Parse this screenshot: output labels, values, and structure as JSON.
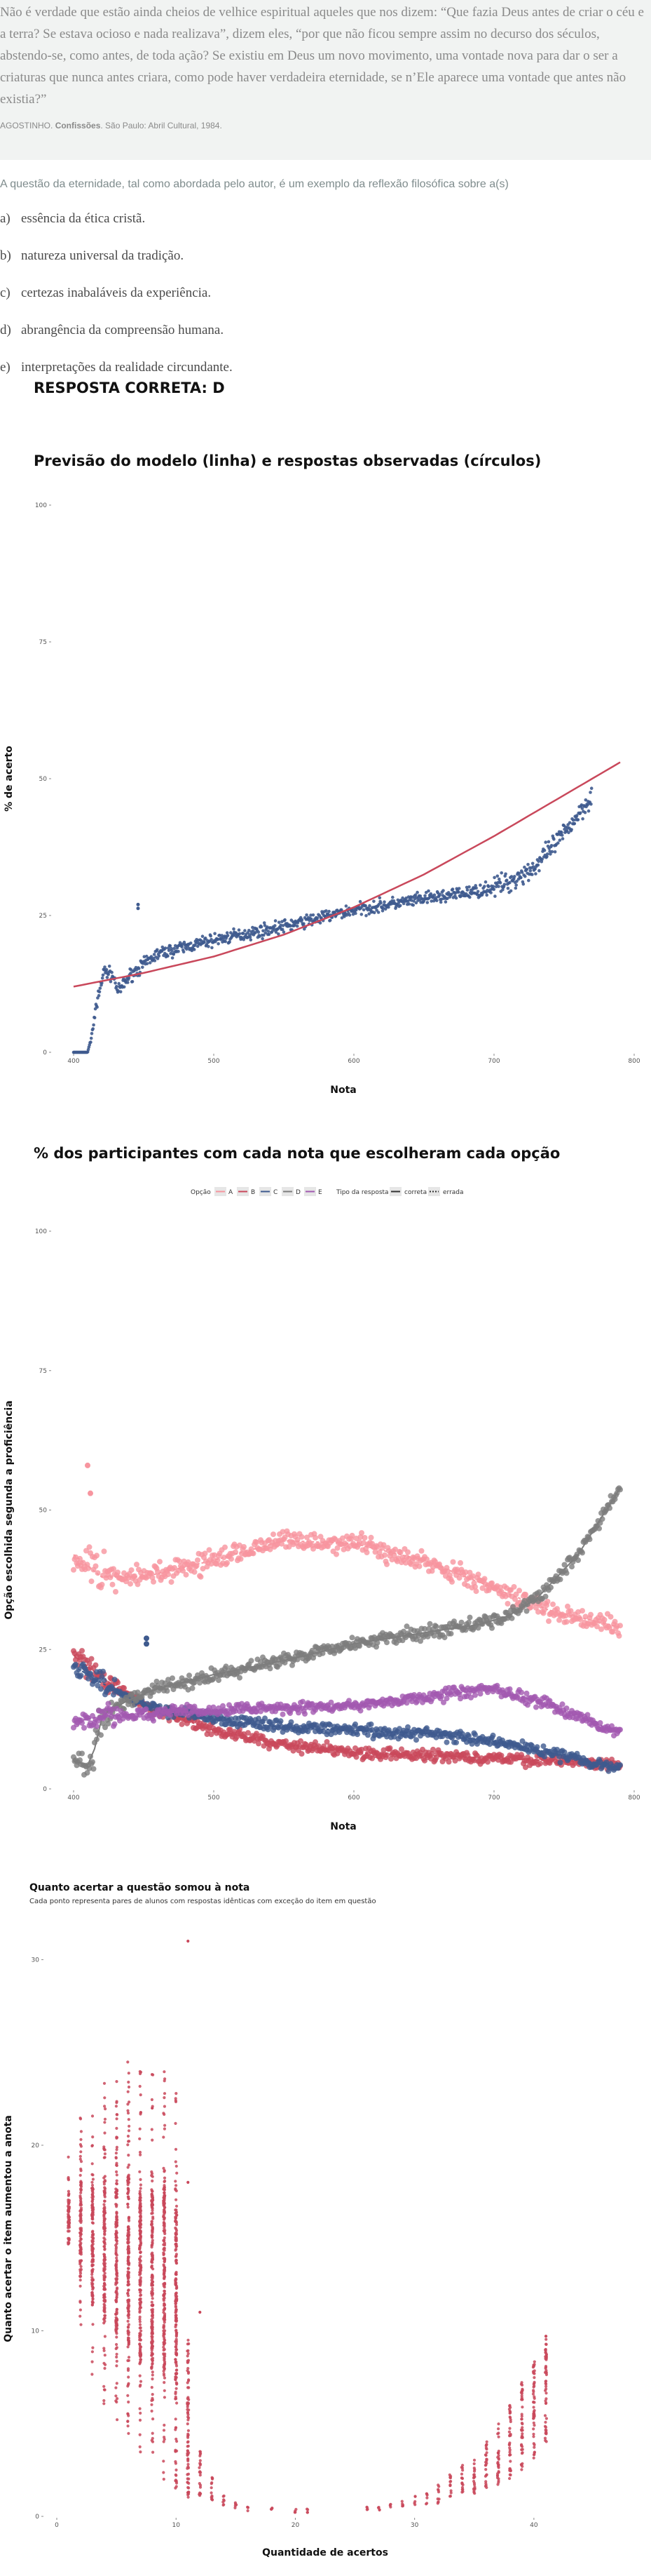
{
  "excerpt": {
    "quote": "Não é verdade que estão ainda cheios de velhice espiritual aqueles que nos dizem: “Que fazia Deus antes de criar o céu e a terra? Se estava ocioso e nada realizava”, dizem eles, “por que não ficou sempre assim no decurso dos séculos, abstendo-se, como antes, de toda ação? Se existiu em Deus um novo movimento, uma vontade nova para dar o ser a criaturas que nunca antes criara, como pode haver verdadeira eternidade, se n’Ele aparece uma vontade que antes não existia?”",
    "source_author": "AGOSTINHO.",
    "source_title": "Confissões",
    "source_rest": ". São Paulo: Abril Cultural, 1984."
  },
  "question": "A questão da eternidade, tal como abordada pelo autor, é um exemplo da reflexão filosófica sobre a(s)",
  "options": [
    {
      "letter": "a)",
      "text": "essência da ética cristã."
    },
    {
      "letter": "b)",
      "text": "natureza universal da tradição."
    },
    {
      "letter": "c)",
      "text": "certezas inabaláveis da experiência."
    },
    {
      "letter": "d)",
      "text": "abrangência da compreensão humana."
    },
    {
      "letter": "e)",
      "text": "interpretações da realidade circundante."
    }
  ],
  "answer": "RESPOSTA CORRETA: D",
  "chart_data": [
    {
      "type": "scatter",
      "title": "Previsão do modelo (linha) e respostas observadas (círculos)",
      "xlabel": "Nota",
      "ylabel": "% de acerto",
      "xticks": [
        400,
        500,
        600,
        700,
        800
      ],
      "yticks": [
        0,
        25,
        50,
        75,
        100
      ],
      "xlim": [
        385,
        800
      ],
      "ylim": [
        0,
        100
      ],
      "grid": false,
      "point_color": "#3e5a8e",
      "line_color": "#c9485b",
      "model_line": [
        [
          400,
          12
        ],
        [
          450,
          14.5
        ],
        [
          500,
          17.5
        ],
        [
          550,
          21.5
        ],
        [
          600,
          26.5
        ],
        [
          650,
          32.5
        ],
        [
          700,
          39.5
        ],
        [
          750,
          47
        ],
        [
          790,
          53
        ]
      ],
      "observed_trend": [
        [
          400,
          0
        ],
        [
          410,
          0
        ],
        [
          413,
          3
        ],
        [
          418,
          11
        ],
        [
          422,
          15
        ],
        [
          428,
          14
        ],
        [
          432,
          11
        ],
        [
          440,
          14
        ],
        [
          460,
          18
        ],
        [
          500,
          20.5
        ],
        [
          550,
          23
        ],
        [
          600,
          26
        ],
        [
          650,
          28
        ],
        [
          690,
          29.5
        ],
        [
          710,
          31
        ],
        [
          730,
          34
        ],
        [
          750,
          40
        ],
        [
          770,
          47
        ]
      ],
      "outliers": [
        [
          446,
          27
        ],
        [
          446,
          26.3
        ]
      ]
    },
    {
      "type": "scatter",
      "title": "% dos participantes com cada nota que escolheram cada opção",
      "xlabel": "Nota",
      "ylabel": "Opção escolhida segunda a proficiência",
      "xticks": [
        400,
        500,
        600,
        700,
        800
      ],
      "yticks": [
        0,
        25,
        50,
        75,
        100
      ],
      "xlim": [
        385,
        800
      ],
      "ylim": [
        0,
        100
      ],
      "grid": false,
      "legend": {
        "position": "top",
        "option_title": "Opção",
        "type_title": "Tipo da resposta",
        "types": [
          "correta",
          "errada"
        ]
      },
      "series": [
        {
          "name": "A",
          "color": "#f7959f",
          "trend": [
            [
              400,
              42
            ],
            [
              420,
              38
            ],
            [
              450,
              38
            ],
            [
              500,
              41
            ],
            [
              550,
              44.5
            ],
            [
              600,
              44
            ],
            [
              650,
              41
            ],
            [
              700,
              36
            ],
            [
              740,
              32
            ],
            [
              790,
              29
            ]
          ]
        },
        {
          "name": "B",
          "color": "#c9485b",
          "trend": [
            [
              400,
              24
            ],
            [
              420,
              20
            ],
            [
              450,
              15
            ],
            [
              500,
              10.5
            ],
            [
              550,
              8
            ],
            [
              600,
              6.5
            ],
            [
              650,
              6
            ],
            [
              700,
              5.5
            ],
            [
              750,
              5
            ],
            [
              790,
              4.5
            ]
          ]
        },
        {
          "name": "C",
          "color": "#3e5a8e",
          "trend": [
            [
              400,
              22
            ],
            [
              420,
              19
            ],
            [
              450,
              15
            ],
            [
              500,
              12.5
            ],
            [
              550,
              11
            ],
            [
              600,
              10.5
            ],
            [
              650,
              10
            ],
            [
              700,
              8.5
            ],
            [
              750,
              6
            ],
            [
              790,
              3.5
            ]
          ]
        },
        {
          "name": "D",
          "color": "#7d7d7d",
          "trend": [
            [
              400,
              5
            ],
            [
              413,
              4
            ],
            [
              418,
              12
            ],
            [
              425,
              14
            ],
            [
              440,
              16
            ],
            [
              460,
              18
            ],
            [
              500,
              20.5
            ],
            [
              550,
              23
            ],
            [
              600,
              26
            ],
            [
              650,
              28
            ],
            [
              690,
              29.5
            ],
            [
              710,
              31
            ],
            [
              730,
              34
            ],
            [
              760,
              42
            ],
            [
              790,
              54
            ]
          ]
        },
        {
          "name": "E",
          "color": "#a259b0",
          "trend": [
            [
              400,
              12
            ],
            [
              420,
              13
            ],
            [
              450,
              13.5
            ],
            [
              500,
              14
            ],
            [
              550,
              14.5
            ],
            [
              600,
              15
            ],
            [
              650,
              16.5
            ],
            [
              700,
              18
            ],
            [
              740,
              15
            ],
            [
              790,
              10
            ]
          ]
        }
      ],
      "series_outliers": [
        {
          "series": "A",
          "points": [
            [
              410,
              58
            ],
            [
              412,
              53
            ]
          ]
        },
        {
          "series": "C",
          "points": [
            [
              452,
              27
            ],
            [
              452,
              26
            ]
          ]
        }
      ]
    },
    {
      "type": "scatter",
      "title": "Quanto acertar a questão somou à nota",
      "subtitle": "Cada ponto representa pares de alunos com respostas idênticas com exceção do item em questão",
      "xlabel": "Quantidade de acertos",
      "ylabel": "Quanto acertar o item aumentou a anota",
      "xticks": [
        0,
        10,
        20,
        30,
        40
      ],
      "yticks": [
        0,
        10,
        20,
        30
      ],
      "xlim": [
        -1,
        46
      ],
      "ylim": [
        0,
        31
      ],
      "grid": false,
      "point_color": "#c9485b",
      "column_ranges": [
        {
          "x": 1,
          "min": 13,
          "max": 19.5
        },
        {
          "x": 2,
          "min": 10,
          "max": 21.5
        },
        {
          "x": 3,
          "min": 7.5,
          "max": 22.5
        },
        {
          "x": 4,
          "min": 6,
          "max": 23.5
        },
        {
          "x": 5,
          "min": 5,
          "max": 23.5
        },
        {
          "x": 6,
          "min": 4,
          "max": 24.5
        },
        {
          "x": 7,
          "min": 3,
          "max": 24
        },
        {
          "x": 8,
          "min": 2.5,
          "max": 24
        },
        {
          "x": 9,
          "min": 2,
          "max": 24.5
        },
        {
          "x": 10,
          "min": 1.5,
          "max": 23
        },
        {
          "x": 11,
          "min": 1,
          "max": 9.5
        },
        {
          "x": 12,
          "min": 1,
          "max": 3.5
        },
        {
          "x": 13,
          "min": 0.7,
          "max": 2.2
        },
        {
          "x": 14,
          "min": 0.5,
          "max": 1.3
        },
        {
          "x": 15,
          "min": 0.4,
          "max": 0.9
        },
        {
          "x": 16,
          "min": 0.3,
          "max": 0.6
        },
        {
          "x": 18,
          "min": 0.3,
          "max": 0.5
        },
        {
          "x": 20,
          "min": 0.2,
          "max": 0.4
        },
        {
          "x": 21,
          "min": 0.2,
          "max": 0.4
        },
        {
          "x": 26,
          "min": 0.3,
          "max": 0.5
        },
        {
          "x": 27,
          "min": 0.3,
          "max": 0.6
        },
        {
          "x": 28,
          "min": 0.3,
          "max": 0.7
        },
        {
          "x": 29,
          "min": 0.4,
          "max": 0.9
        },
        {
          "x": 30,
          "min": 0.5,
          "max": 1.1
        },
        {
          "x": 31,
          "min": 0.6,
          "max": 1.4
        },
        {
          "x": 32,
          "min": 0.7,
          "max": 1.8
        },
        {
          "x": 33,
          "min": 0.9,
          "max": 2.3
        },
        {
          "x": 34,
          "min": 1,
          "max": 2.9
        },
        {
          "x": 35,
          "min": 1.2,
          "max": 3.5
        },
        {
          "x": 36,
          "min": 1.4,
          "max": 4.2
        },
        {
          "x": 37,
          "min": 1.7,
          "max": 5
        },
        {
          "x": 38,
          "min": 2,
          "max": 6
        },
        {
          "x": 39,
          "min": 2.5,
          "max": 7.3
        },
        {
          "x": 40,
          "min": 3,
          "max": 8.5
        },
        {
          "x": 41,
          "min": 4,
          "max": 9.8
        }
      ],
      "outliers": [
        [
          11,
          31
        ],
        [
          8,
          22
        ],
        [
          11,
          18
        ],
        [
          12,
          11
        ]
      ]
    }
  ]
}
